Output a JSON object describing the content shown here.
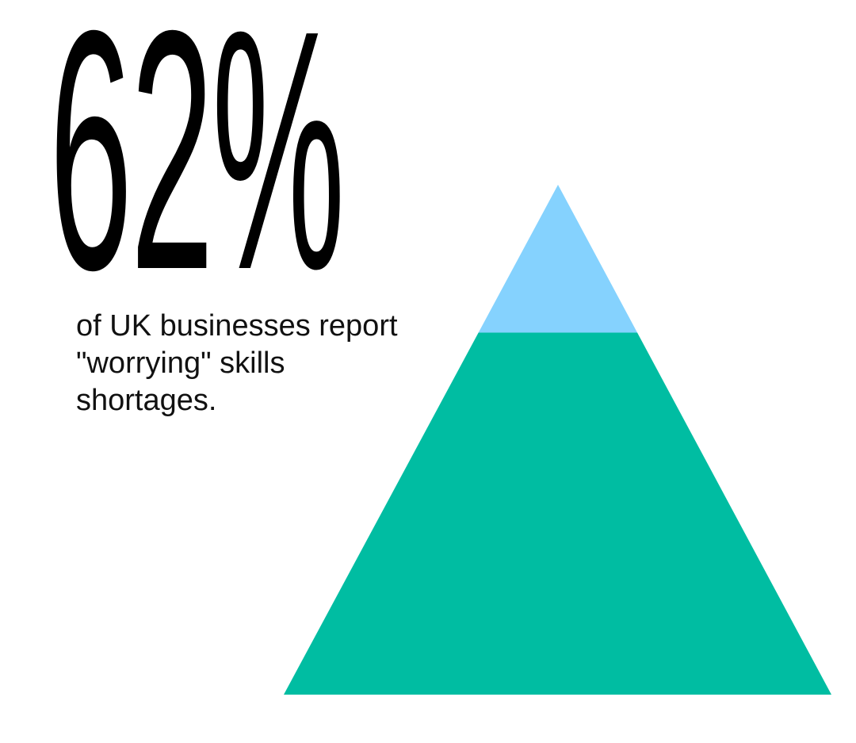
{
  "stat": {
    "value": "62%",
    "caption": "of UK businesses report \"worrying\" skills shortages."
  },
  "pyramid": {
    "top_share": 0.29,
    "colors": {
      "top": "#85d2fe",
      "base": "#00bda2"
    }
  }
}
